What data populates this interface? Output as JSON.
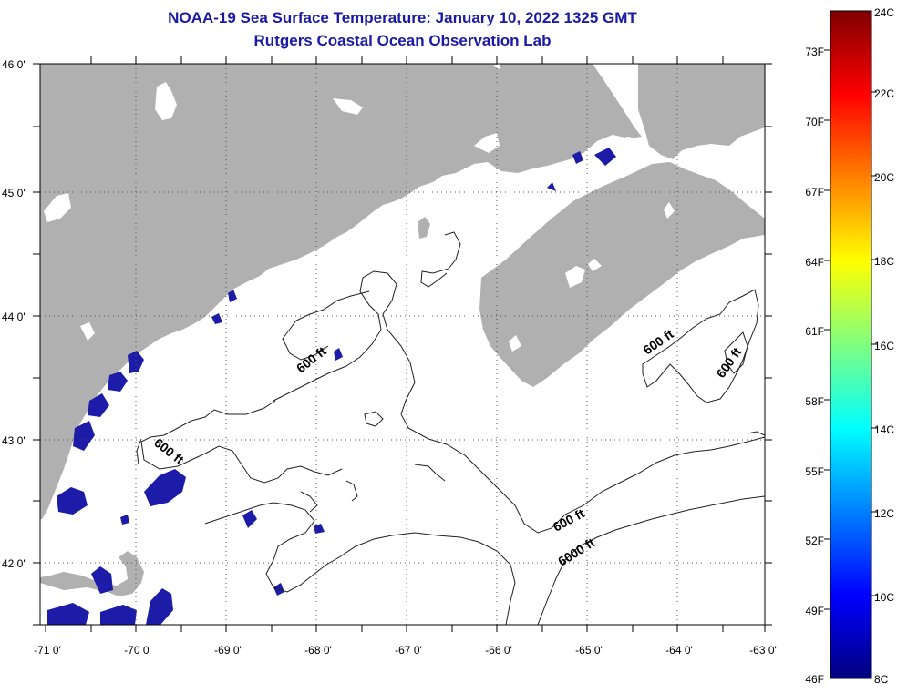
{
  "title_line1": "NOAA-19 Sea Surface Temperature:  January 10, 2022 1325 GMT",
  "title_line2": "Rutgers Coastal Ocean Observation Lab",
  "map": {
    "lat_labels": [
      "46 0'",
      "45 0'",
      "44 0'",
      "43 0'",
      "42 0'"
    ],
    "lon_labels": [
      "-71 0'",
      "-70 0'",
      "-69 0'",
      "-68 0'",
      "-67 0'",
      "-66 0'",
      "-65 0'",
      "-64 0'",
      "-63 0'"
    ],
    "contour_labels": [
      "600 ft",
      "600 ft",
      "600 ft",
      "600 ft",
      "600 ft",
      "6000 ft"
    ],
    "colors": {
      "land": "#b0b0b0",
      "water": "#ffffff",
      "cold_water": "#1c1ca8",
      "contour": "#202020"
    }
  },
  "colorbar": {
    "fahrenheit_labels": [
      "73F",
      "70F",
      "67F",
      "64F",
      "61F",
      "58F",
      "55F",
      "52F",
      "49F",
      "46F"
    ],
    "celsius_labels": [
      "24C",
      "22C",
      "20C",
      "18C",
      "16C",
      "14C",
      "12C",
      "10C",
      "8C"
    ],
    "stops": [
      "#00007f",
      "#0000ff",
      "#0080ff",
      "#00ffff",
      "#80ff80",
      "#ffff00",
      "#ff8000",
      "#ff0000",
      "#7f0000"
    ]
  }
}
